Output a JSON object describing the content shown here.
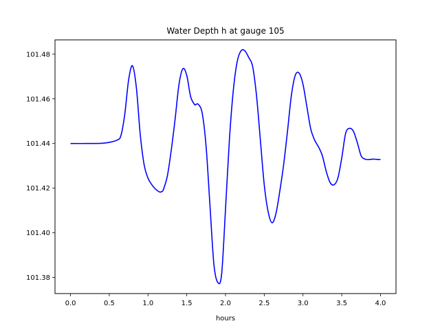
{
  "chart_data": {
    "type": "line",
    "title": "Water Depth h at gauge 105",
    "xlabel": "hours",
    "ylabel": "",
    "xlim": [
      -0.2,
      4.2
    ],
    "ylim": [
      101.3728,
      101.4864
    ],
    "x_ticks": [
      0.0,
      0.5,
      1.0,
      1.5,
      2.0,
      2.5,
      3.0,
      3.5,
      4.0
    ],
    "x_tick_labels": [
      "0.0",
      "0.5",
      "1.0",
      "1.5",
      "2.0",
      "2.5",
      "3.0",
      "3.5",
      "4.0"
    ],
    "y_ticks": [
      101.38,
      101.4,
      101.42,
      101.44,
      101.46,
      101.48
    ],
    "y_tick_labels": [
      "101.38",
      "101.40",
      "101.42",
      "101.44",
      "101.46",
      "101.48"
    ],
    "grid": false,
    "series": [
      {
        "color": "#0000ff",
        "x": [
          0.0,
          0.2,
          0.4,
          0.5,
          0.6,
          0.65,
          0.7,
          0.75,
          0.8,
          0.85,
          0.9,
          0.95,
          1.0,
          1.05,
          1.1,
          1.15,
          1.18,
          1.2,
          1.25,
          1.3,
          1.35,
          1.4,
          1.45,
          1.5,
          1.55,
          1.6,
          1.62,
          1.65,
          1.7,
          1.75,
          1.8,
          1.85,
          1.9,
          1.95,
          2.0,
          2.05,
          2.1,
          2.15,
          2.2,
          2.25,
          2.3,
          2.35,
          2.4,
          2.45,
          2.5,
          2.55,
          2.6,
          2.65,
          2.7,
          2.75,
          2.8,
          2.85,
          2.9,
          2.95,
          3.0,
          3.05,
          3.1,
          3.15,
          3.2,
          3.25,
          3.3,
          3.35,
          3.4,
          3.45,
          3.5,
          3.55,
          3.6,
          3.65,
          3.7,
          3.75,
          3.8,
          3.85,
          3.9,
          3.95,
          4.0
        ],
        "y": [
          101.44,
          101.44,
          101.4401,
          101.4405,
          101.4415,
          101.4435,
          101.453,
          101.4685,
          101.4748,
          101.465,
          101.444,
          101.4305,
          101.4245,
          101.4215,
          101.4195,
          101.4183,
          101.4185,
          101.4195,
          101.4255,
          101.437,
          101.451,
          101.4665,
          101.4735,
          101.4705,
          101.461,
          101.4575,
          101.4575,
          101.4575,
          101.4535,
          101.4385,
          101.412,
          101.386,
          101.3778,
          101.3815,
          101.4105,
          101.4415,
          101.4635,
          101.4765,
          101.4815,
          101.4815,
          101.4785,
          101.4745,
          101.4615,
          101.4415,
          101.4215,
          101.4095,
          101.4045,
          101.4085,
          101.4185,
          101.4305,
          101.4455,
          101.4615,
          101.4705,
          101.4715,
          101.4665,
          101.4565,
          101.4465,
          101.4415,
          101.4385,
          101.4345,
          101.4275,
          101.4225,
          101.4215,
          101.4245,
          101.4335,
          101.4445,
          101.4468,
          101.4455,
          101.4405,
          101.4345,
          101.433,
          101.4328,
          101.433,
          101.4329,
          101.4328
        ]
      }
    ]
  }
}
